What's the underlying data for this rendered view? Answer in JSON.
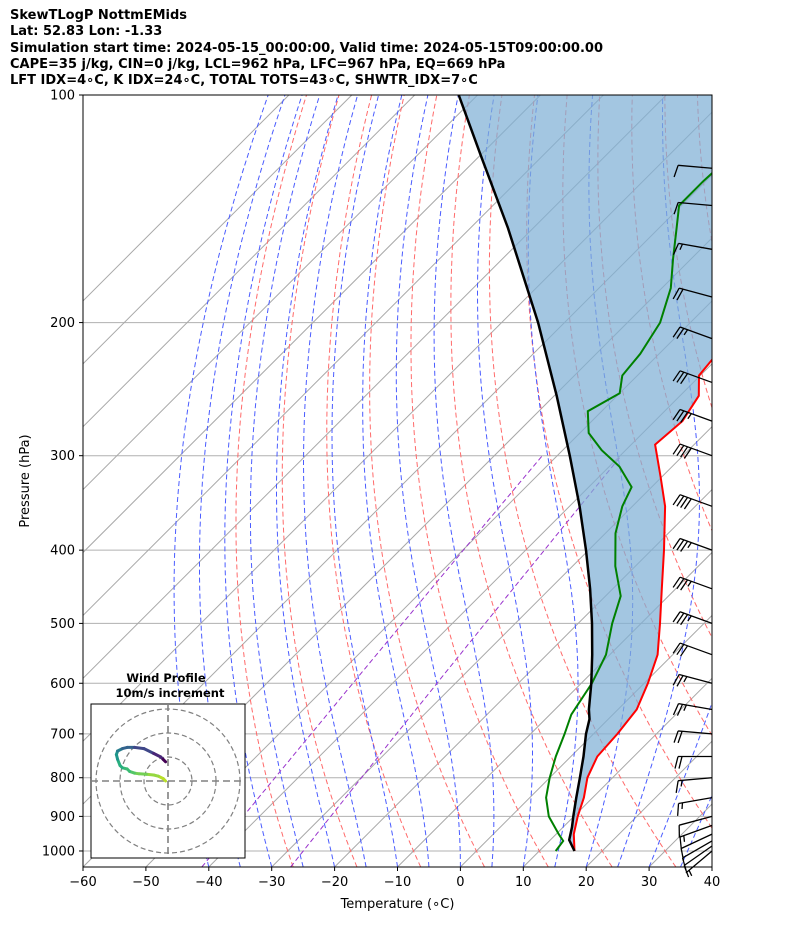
{
  "header": {
    "title": "SkewTLogP NottmEMids",
    "location": "Lat: 52.83   Lon: -1.33",
    "times": "Simulation start time: 2024-05-15_00:00:00, Valid time: 2024-05-15T09:00:00.00",
    "indices1": "CAPE=35 j/kg, CIN=0 j/kg, LCL=962 hPa, LFC=967 hPa, EQ=669 hPa",
    "indices2": "LFT IDX=4∘C, K IDX=24∘C, TOTAL TOTS=43∘C, SHWTR_IDX=7∘C"
  },
  "colors": {
    "temperature": "#ff0000",
    "dewpoint": "#008000",
    "parcel": "#000000",
    "cape_fill": "#7fb0d6",
    "dry_adiabat": "#ff6a6a",
    "moist_adiabat": "#4a5cff",
    "mixing_ratio": "#9933cc",
    "isotherm": "#a8a8a8"
  },
  "chart_data": [
    {
      "type": "line",
      "subtype": "skewt-logp",
      "xlabel": "Temperature (∘C)",
      "ylabel": "Pressure (hPa)",
      "xlim": [
        -60,
        40
      ],
      "ylim": [
        1050,
        100
      ],
      "y_scale": "log",
      "skew_deg": 45,
      "x_ticks": [
        -60,
        -50,
        -40,
        -30,
        -20,
        -10,
        0,
        10,
        20,
        30,
        40
      ],
      "y_ticks": [
        1000,
        900,
        800,
        700,
        600,
        500,
        400,
        300,
        200,
        100
      ],
      "grid": true,
      "series": [
        {
          "name": "",
          "role": "temperature",
          "points": [
            [
              1000,
              15.6
            ],
            [
              950,
              12.8
            ],
            [
              900,
              10.6
            ],
            [
              850,
              8.6
            ],
            [
              800,
              6.0
            ],
            [
              750,
              4.2
            ],
            [
              700,
              3.8
            ],
            [
              650,
              3.0
            ],
            [
              600,
              0.6
            ],
            [
              550,
              -2.4
            ],
            [
              500,
              -7.0
            ],
            [
              450,
              -12.2
            ],
            [
              400,
              -18.0
            ],
            [
              350,
              -24.8
            ],
            [
              320,
              -30.2
            ],
            [
              290,
              -36.2
            ],
            [
              270,
              -35.6
            ],
            [
              250,
              -37.0
            ],
            [
              235,
              -40.2
            ],
            [
              220,
              -40.8
            ],
            [
              210,
              -40.8
            ],
            [
              200,
              -39.8
            ],
            [
              185,
              -40.2
            ],
            [
              170,
              -41.0
            ],
            [
              155,
              -41.8
            ],
            [
              140,
              -42.5
            ],
            [
              125,
              -43.0
            ],
            [
              110,
              -43.2
            ],
            [
              100,
              -43.4
            ]
          ]
        },
        {
          "name": "",
          "role": "dewpoint",
          "points": [
            [
              1000,
              12.6
            ],
            [
              970,
              12.2
            ],
            [
              950,
              10.4
            ],
            [
              900,
              6.0
            ],
            [
              850,
              2.6
            ],
            [
              800,
              0.0
            ],
            [
              750,
              -2.4
            ],
            [
              700,
              -4.6
            ],
            [
              660,
              -6.6
            ],
            [
              600,
              -8.3
            ],
            [
              550,
              -10.6
            ],
            [
              500,
              -14.6
            ],
            [
              460,
              -17.6
            ],
            [
              420,
              -23.2
            ],
            [
              380,
              -28.4
            ],
            [
              350,
              -31.6
            ],
            [
              330,
              -33.2
            ],
            [
              310,
              -38.4
            ],
            [
              295,
              -43.8
            ],
            [
              280,
              -48.6
            ],
            [
              262,
              -52.2
            ],
            [
              248,
              -50.0
            ],
            [
              235,
              -52.4
            ],
            [
              220,
              -53.0
            ],
            [
              200,
              -54.8
            ],
            [
              180,
              -58.6
            ],
            [
              165,
              -62.8
            ],
            [
              150,
              -67.2
            ],
            [
              140,
              -70.4
            ],
            [
              130,
              -70.4
            ],
            [
              120,
              -70.0
            ],
            [
              110,
              -69.8
            ],
            [
              100,
              -70.2
            ]
          ]
        },
        {
          "name": "",
          "role": "parcel",
          "points": [
            [
              1000,
              15.6
            ],
            [
              967,
              13.0
            ],
            [
              930,
              11.4
            ],
            [
              900,
              9.9
            ],
            [
              850,
              7.4
            ],
            [
              800,
              4.8
            ],
            [
              750,
              2.0
            ],
            [
              700,
              -1.2
            ],
            [
              669,
              -3.0
            ],
            [
              650,
              -4.6
            ],
            [
              600,
              -8.4
            ],
            [
              550,
              -12.8
            ],
            [
              500,
              -17.8
            ],
            [
              450,
              -23.6
            ],
            [
              400,
              -30.4
            ],
            [
              350,
              -38.4
            ],
            [
              300,
              -48.0
            ],
            [
              250,
              -59.6
            ],
            [
              200,
              -74.2
            ],
            [
              150,
              -94.0
            ],
            [
              120,
              -110.0
            ],
            [
              100,
              -123.0
            ]
          ]
        }
      ],
      "wind_barbs": [
        {
          "p": 1000,
          "speed_kt": 5,
          "dir": 230
        },
        {
          "p": 985,
          "speed_kt": 10,
          "dir": 235
        },
        {
          "p": 970,
          "speed_kt": 10,
          "dir": 240
        },
        {
          "p": 950,
          "speed_kt": 10,
          "dir": 245
        },
        {
          "p": 925,
          "speed_kt": 15,
          "dir": 250
        },
        {
          "p": 900,
          "speed_kt": 10,
          "dir": 255
        },
        {
          "p": 850,
          "speed_kt": 15,
          "dir": 260
        },
        {
          "p": 800,
          "speed_kt": 15,
          "dir": 265
        },
        {
          "p": 750,
          "speed_kt": 20,
          "dir": 270
        },
        {
          "p": 700,
          "speed_kt": 20,
          "dir": 275
        },
        {
          "p": 650,
          "speed_kt": 25,
          "dir": 280
        },
        {
          "p": 600,
          "speed_kt": 25,
          "dir": 285
        },
        {
          "p": 550,
          "speed_kt": 30,
          "dir": 290
        },
        {
          "p": 500,
          "speed_kt": 35,
          "dir": 290
        },
        {
          "p": 450,
          "speed_kt": 35,
          "dir": 290
        },
        {
          "p": 400,
          "speed_kt": 35,
          "dir": 290
        },
        {
          "p": 350,
          "speed_kt": 40,
          "dir": 290
        },
        {
          "p": 300,
          "speed_kt": 40,
          "dir": 290
        },
        {
          "p": 270,
          "speed_kt": 35,
          "dir": 290
        },
        {
          "p": 240,
          "speed_kt": 30,
          "dir": 290
        },
        {
          "p": 210,
          "speed_kt": 25,
          "dir": 290
        },
        {
          "p": 185,
          "speed_kt": 20,
          "dir": 285
        },
        {
          "p": 160,
          "speed_kt": 15,
          "dir": 280
        },
        {
          "p": 140,
          "speed_kt": 10,
          "dir": 275
        },
        {
          "p": 125,
          "speed_kt": 10,
          "dir": 275
        }
      ]
    },
    {
      "type": "line",
      "subtype": "hodograph",
      "title": "Wind Profile",
      "subtitle": "10m/s increment",
      "ring_increment_ms": 10,
      "rings": 3,
      "points_uv_ms": [
        [
          -1,
          0
        ],
        [
          -2,
          1
        ],
        [
          -4,
          2
        ],
        [
          -6,
          2.5
        ],
        [
          -9,
          2.8
        ],
        [
          -12,
          3
        ],
        [
          -14,
          3.3
        ],
        [
          -16,
          4
        ],
        [
          -17,
          5
        ],
        [
          -19,
          5.5
        ],
        [
          -20,
          6.5
        ],
        [
          -21,
          9
        ],
        [
          -21.5,
          11
        ],
        [
          -21,
          12.5
        ],
        [
          -19,
          13.5
        ],
        [
          -17,
          14
        ],
        [
          -14,
          14
        ],
        [
          -10,
          13.5
        ],
        [
          -6,
          11.5
        ],
        [
          -3,
          10
        ],
        [
          -2,
          9
        ],
        [
          -1,
          8
        ]
      ]
    }
  ]
}
